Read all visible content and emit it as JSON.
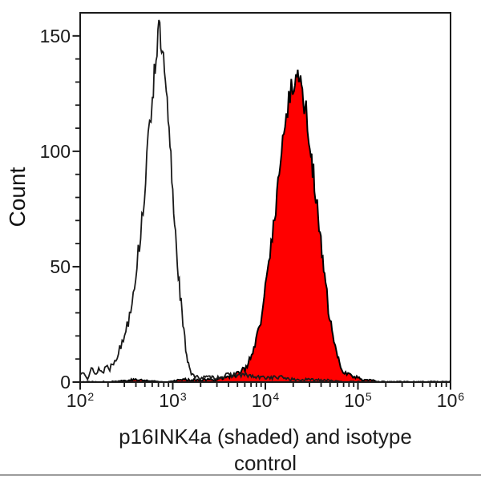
{
  "page": {
    "background": "#ffffff",
    "divider_color": "#9b9b9b"
  },
  "chart_data": {
    "type": "area",
    "subtype": "flow-cytometry-histogram",
    "title": "",
    "ylabel": "Count",
    "xlabel": "p16INK4a (shaded) and isotype control",
    "xlabel_lines": [
      "p16INK4a (shaded) and isotype",
      "control"
    ],
    "x_scale": "log10",
    "xlim_log10": [
      2,
      6
    ],
    "ylim": [
      0,
      160
    ],
    "x_tick_base": "10",
    "x_tick_exponents": [
      2,
      3,
      4,
      5,
      6
    ],
    "x_minor_multiples": [
      2,
      3,
      4,
      5,
      6,
      7,
      8,
      9
    ],
    "y_major_ticks": [
      0,
      50,
      100,
      150
    ],
    "y_minor_step": 10,
    "grid": false,
    "legend": "none",
    "axis_color": "#1a1a1a",
    "series": [
      {
        "name": "isotype control",
        "style": "open",
        "line_color": "#1a1a1a",
        "fill_color": "none",
        "points_log10_count": [
          [
            2.0,
            3
          ],
          [
            2.04,
            5
          ],
          [
            2.08,
            2
          ],
          [
            2.12,
            6
          ],
          [
            2.16,
            3
          ],
          [
            2.2,
            6
          ],
          [
            2.24,
            4
          ],
          [
            2.28,
            7
          ],
          [
            2.32,
            6
          ],
          [
            2.36,
            9
          ],
          [
            2.4,
            12
          ],
          [
            2.44,
            15
          ],
          [
            2.48,
            21
          ],
          [
            2.52,
            27
          ],
          [
            2.56,
            36
          ],
          [
            2.6,
            47
          ],
          [
            2.64,
            60
          ],
          [
            2.68,
            76
          ],
          [
            2.72,
            95
          ],
          [
            2.75,
            110
          ],
          [
            2.78,
            125
          ],
          [
            2.8,
            134
          ],
          [
            2.82,
            143
          ],
          [
            2.84,
            150
          ],
          [
            2.85,
            152
          ],
          [
            2.86,
            149
          ],
          [
            2.88,
            144
          ],
          [
            2.9,
            137
          ],
          [
            2.92,
            128
          ],
          [
            2.94,
            118
          ],
          [
            2.96,
            107
          ],
          [
            2.98,
            96
          ],
          [
            3.0,
            82
          ],
          [
            3.02,
            70
          ],
          [
            3.04,
            59
          ],
          [
            3.06,
            48
          ],
          [
            3.08,
            38
          ],
          [
            3.1,
            29
          ],
          [
            3.12,
            21
          ],
          [
            3.14,
            15
          ],
          [
            3.16,
            10
          ],
          [
            3.18,
            7
          ],
          [
            3.2,
            4
          ],
          [
            3.24,
            2
          ],
          [
            3.3,
            2
          ],
          [
            3.4,
            2
          ],
          [
            3.5,
            2
          ],
          [
            3.6,
            3
          ],
          [
            3.7,
            3
          ],
          [
            3.8,
            3
          ],
          [
            3.9,
            2
          ],
          [
            4.0,
            2
          ],
          [
            4.1,
            2
          ],
          [
            4.2,
            2
          ],
          [
            4.3,
            1
          ],
          [
            4.4,
            1
          ],
          [
            4.5,
            1
          ],
          [
            4.6,
            1
          ],
          [
            4.7,
            1
          ],
          [
            4.8,
            0
          ],
          [
            5.0,
            0
          ],
          [
            5.5,
            0
          ],
          [
            6.0,
            0
          ]
        ]
      },
      {
        "name": "p16INK4a",
        "style": "shaded",
        "line_color": "#000000",
        "fill_color": "#ff0000",
        "points_log10_count": [
          [
            2.0,
            0
          ],
          [
            2.3,
            0
          ],
          [
            2.6,
            1
          ],
          [
            2.9,
            0
          ],
          [
            3.1,
            1
          ],
          [
            3.3,
            1
          ],
          [
            3.45,
            1
          ],
          [
            3.55,
            2
          ],
          [
            3.65,
            3
          ],
          [
            3.72,
            4
          ],
          [
            3.78,
            6
          ],
          [
            3.84,
            10
          ],
          [
            3.9,
            17
          ],
          [
            3.95,
            26
          ],
          [
            4.0,
            40
          ],
          [
            4.05,
            56
          ],
          [
            4.1,
            72
          ],
          [
            4.15,
            90
          ],
          [
            4.2,
            108
          ],
          [
            4.24,
            118
          ],
          [
            4.28,
            126
          ],
          [
            4.31,
            131
          ],
          [
            4.34,
            135
          ],
          [
            4.36,
            133
          ],
          [
            4.38,
            129
          ],
          [
            4.41,
            124
          ],
          [
            4.44,
            117
          ],
          [
            4.47,
            108
          ],
          [
            4.5,
            97
          ],
          [
            4.53,
            87
          ],
          [
            4.56,
            75
          ],
          [
            4.59,
            63
          ],
          [
            4.62,
            52
          ],
          [
            4.65,
            42
          ],
          [
            4.68,
            32
          ],
          [
            4.71,
            24
          ],
          [
            4.74,
            17
          ],
          [
            4.77,
            12
          ],
          [
            4.8,
            8
          ],
          [
            4.84,
            5
          ],
          [
            4.88,
            4
          ],
          [
            4.92,
            3
          ],
          [
            4.96,
            2
          ],
          [
            5.0,
            2
          ],
          [
            5.05,
            1
          ],
          [
            5.1,
            1
          ],
          [
            5.15,
            1
          ],
          [
            5.2,
            0
          ],
          [
            5.4,
            0
          ],
          [
            5.7,
            0
          ],
          [
            6.0,
            0
          ]
        ]
      }
    ]
  }
}
